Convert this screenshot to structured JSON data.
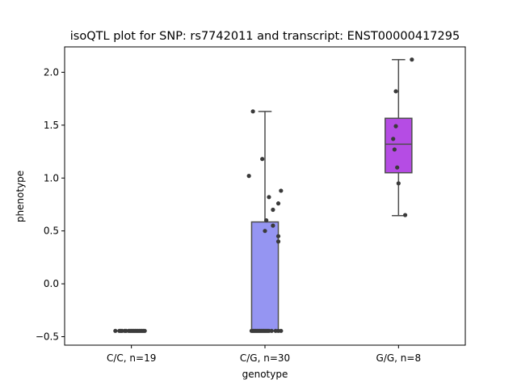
{
  "chart_data": {
    "type": "box",
    "title": "isoQTL plot for SNP: rs7742011 and transcript: ENST00000417295",
    "xlabel": "genotype",
    "ylabel": "phenotype",
    "ylim": [
      -0.58,
      2.24
    ],
    "yticks": [
      -0.5,
      0.0,
      0.5,
      1.0,
      1.5,
      2.0
    ],
    "ytick_labels": [
      "−0.5",
      "0.0",
      "0.5",
      "1.0",
      "1.5",
      "2.0"
    ],
    "grid": false,
    "categories": [
      "C/C, n=19",
      "C/G, n=30",
      "G/G, n=8"
    ],
    "groups": [
      {
        "label": "C/C, n=19",
        "color": "#8e8e8e",
        "box": {
          "whislo": -0.445,
          "q1": -0.445,
          "med": -0.445,
          "q3": -0.445,
          "whishi": -0.445
        },
        "points": [
          [
            -0.12,
            -0.445
          ],
          [
            -0.09,
            -0.445
          ],
          [
            -0.08,
            -0.445
          ],
          [
            -0.07,
            -0.445
          ],
          [
            -0.05,
            -0.445
          ],
          [
            -0.04,
            -0.445
          ],
          [
            -0.02,
            -0.445
          ],
          [
            -0.01,
            -0.445
          ],
          [
            0.0,
            -0.445
          ],
          [
            0.01,
            -0.445
          ],
          [
            0.02,
            -0.445
          ],
          [
            0.03,
            -0.445
          ],
          [
            0.04,
            -0.445
          ],
          [
            0.05,
            -0.445
          ],
          [
            0.06,
            -0.445
          ],
          [
            0.07,
            -0.445
          ],
          [
            0.08,
            -0.445
          ],
          [
            0.09,
            -0.445
          ],
          [
            0.1,
            -0.445
          ]
        ]
      },
      {
        "label": "C/G, n=30",
        "color": "#9595f2",
        "box": {
          "whislo": -0.445,
          "q1": -0.445,
          "med": -0.445,
          "q3": 0.585,
          "whishi": 1.63
        },
        "points": [
          [
            -0.12,
            1.02
          ],
          [
            -0.09,
            1.63
          ],
          [
            -0.02,
            1.18
          ],
          [
            0.03,
            0.82
          ],
          [
            0.06,
            0.7
          ],
          [
            0.1,
            0.76
          ],
          [
            0.12,
            0.88
          ],
          [
            0.01,
            0.6
          ],
          [
            0.0,
            0.5
          ],
          [
            0.06,
            0.55
          ],
          [
            0.1,
            0.45
          ],
          [
            0.1,
            0.4
          ],
          [
            -0.1,
            -0.445
          ],
          [
            -0.09,
            -0.445
          ],
          [
            -0.08,
            -0.445
          ],
          [
            -0.07,
            -0.445
          ],
          [
            -0.06,
            -0.445
          ],
          [
            -0.05,
            -0.445
          ],
          [
            -0.04,
            -0.445
          ],
          [
            -0.03,
            -0.445
          ],
          [
            -0.02,
            -0.445
          ],
          [
            -0.01,
            -0.445
          ],
          [
            0.0,
            -0.445
          ],
          [
            0.01,
            -0.445
          ],
          [
            0.02,
            -0.445
          ],
          [
            0.03,
            -0.445
          ],
          [
            0.05,
            -0.445
          ],
          [
            0.08,
            -0.445
          ],
          [
            0.1,
            -0.445
          ],
          [
            0.12,
            -0.445
          ]
        ]
      },
      {
        "label": "G/G, n=8",
        "color": "#b54ce4",
        "box": {
          "whislo": 0.645,
          "q1": 1.05,
          "med": 1.32,
          "q3": 1.565,
          "whishi": 2.12
        },
        "points": [
          [
            0.1,
            2.12
          ],
          [
            -0.02,
            1.82
          ],
          [
            -0.02,
            1.49
          ],
          [
            -0.04,
            1.37
          ],
          [
            -0.03,
            1.27
          ],
          [
            -0.01,
            1.1
          ],
          [
            0.0,
            0.95
          ],
          [
            0.05,
            0.65
          ]
        ]
      }
    ]
  }
}
